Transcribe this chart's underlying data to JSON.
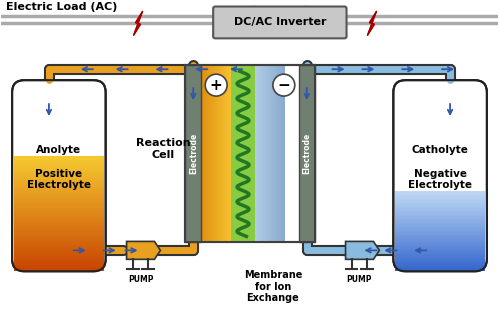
{
  "bg_color": "#ffffff",
  "wire_color": "#aaaaaa",
  "electric_load_label": "Electric Load (AC)",
  "inverter_label": "DC/AC Inverter",
  "bolt_color": "#cc0000",
  "anolyte_label": "Anolyte\n\nPositive\nElectrolyte",
  "catholyte_label": "Catholyte\n\nNegative\nElectrolyte",
  "anolyte_top_color": "#f5c830",
  "anolyte_bottom_color": "#c84400",
  "catholyte_top_color": "#c0d8f5",
  "catholyte_bottom_color": "#3366cc",
  "anolyte_pipe_color": "#e8a020",
  "catholyte_pipe_color": "#88bbdd",
  "electrode_color": "#708070",
  "electrode_dark": "#505050",
  "anolyte_region_color": "#e8a828",
  "catholyte_region_color": "#a8c8e8",
  "membrane_color": "#90d040",
  "membrane_label": "Membrane\nfor Ion\nExchange",
  "reaction_cell_label": "Reaction\nCell",
  "electrode_label": "Electrode",
  "pump_label": "PUMP",
  "arrow_color": "#3355aa"
}
